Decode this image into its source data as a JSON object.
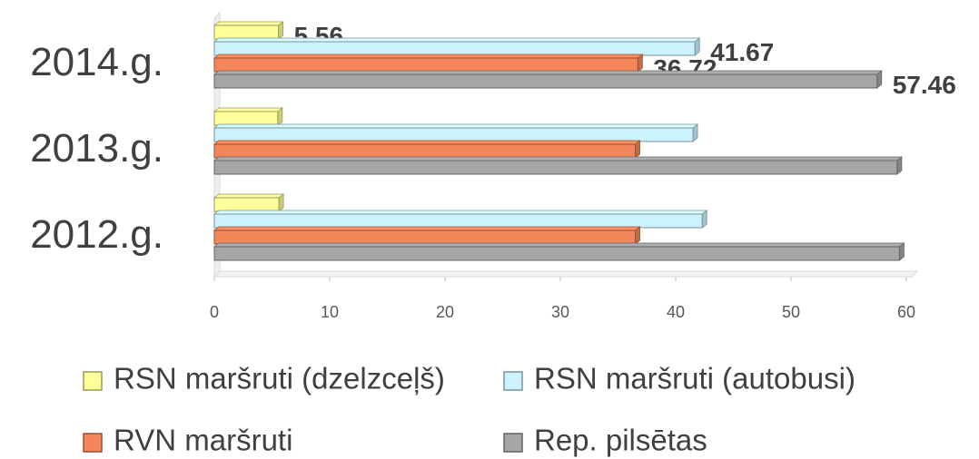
{
  "chart_data": {
    "type": "bar",
    "orientation": "horizontal",
    "categories": [
      "2014.g.",
      "2013.g.",
      "2012.g."
    ],
    "series": [
      {
        "name": "RSN maršruti (dzelzceļš)",
        "color": "#ffff99",
        "values": [
          5.56,
          5.5,
          5.6
        ],
        "value_labels": [
          "5.56",
          null,
          null
        ]
      },
      {
        "name": "RSN maršruti (autobusi)",
        "color": "#ccf2ff",
        "values": [
          41.67,
          41.5,
          42.3
        ],
        "value_labels": [
          "41.67",
          null,
          null
        ]
      },
      {
        "name": "RVN maršruti",
        "color": "#f4875a",
        "values": [
          36.72,
          36.5,
          36.5
        ],
        "value_labels": [
          "36.72",
          null,
          null
        ]
      },
      {
        "name": "Rep. pilsētas",
        "color": "#a6a6a6",
        "values": [
          57.46,
          59.2,
          59.4
        ],
        "value_labels": [
          "57.46",
          null,
          null
        ]
      }
    ],
    "xlim": [
      0,
      60
    ],
    "xticks": [
      0,
      10,
      20,
      30,
      40,
      50,
      60
    ],
    "legend": "bottom"
  }
}
